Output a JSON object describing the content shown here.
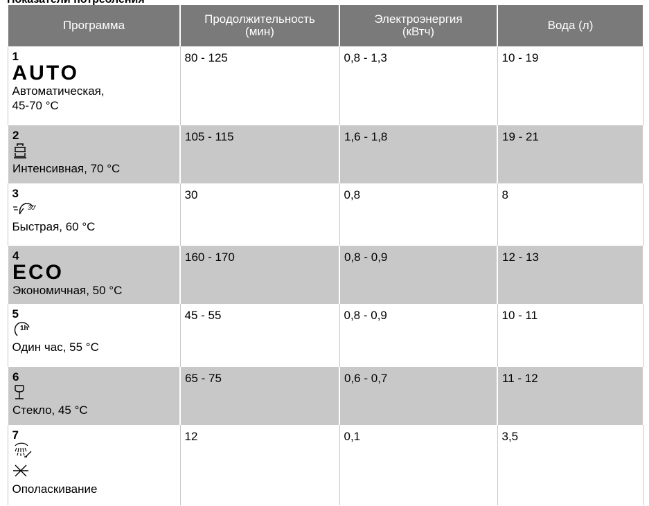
{
  "caption": "Показатели потребления",
  "table": {
    "headers": [
      {
        "label": "Программа",
        "sub": ""
      },
      {
        "label": "Продолжительность",
        "sub": "(мин)"
      },
      {
        "label": "Электроэнергия",
        "sub": "(кВтч)"
      },
      {
        "label": "Вода (л)",
        "sub": ""
      }
    ],
    "rows": [
      {
        "number": "1",
        "icon": "auto-text",
        "icon_text": "AUTO",
        "name_line1": "Автоматическая,",
        "name_line2": "45-70 °C",
        "duration": "80 - 125",
        "energy": "0,8 - 1,3",
        "water": "10 - 19"
      },
      {
        "number": "2",
        "icon": "pots-intensive-icon",
        "name_line1": "Интенсивная, 70 °C",
        "name_line2": "",
        "duration": "105 - 115",
        "energy": "1,6 - 1,8",
        "water": "19 - 21"
      },
      {
        "number": "3",
        "icon": "quick-30-icon",
        "icon_text": "30′",
        "name_line1": "Быстрая, 60 °C",
        "name_line2": "",
        "duration": "30",
        "energy": "0,8",
        "water": "8"
      },
      {
        "number": "4",
        "icon": "eco-text",
        "icon_text": "ECO",
        "name_line1": "Экономичная, 50 °C",
        "name_line2": "",
        "duration": "160 - 170",
        "energy": "0,8 - 0,9",
        "water": "12 - 13"
      },
      {
        "number": "5",
        "icon": "one-hour-icon",
        "icon_text": "1h",
        "name_line1": "Один час, 55 °C",
        "name_line2": "",
        "duration": "45 - 55",
        "energy": "0,8 - 0,9",
        "water": "10 - 11"
      },
      {
        "number": "6",
        "icon": "glass-icon",
        "name_line1": "Стекло, 45 °C",
        "name_line2": "",
        "duration": "65 - 75",
        "energy": "0,6 - 0,7",
        "water": "11 - 12"
      },
      {
        "number": "7",
        "icon": "rinse-icon",
        "name_line1": "Ополаскивание",
        "name_line2": "",
        "duration": "12",
        "energy": "0,1",
        "water": "3,5"
      }
    ]
  }
}
